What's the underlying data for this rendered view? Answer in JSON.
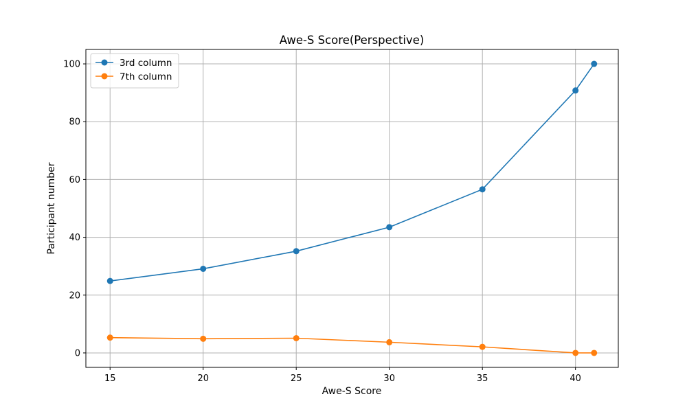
{
  "chart_data": {
    "type": "line",
    "title": "Awe-S Score(Perspective)",
    "xlabel": "Awe-S Score",
    "ylabel": "Participant number",
    "xlim": [
      13.7,
      42.3
    ],
    "ylim": [
      -5,
      105
    ],
    "x_ticks": [
      15,
      20,
      25,
      30,
      35,
      40
    ],
    "y_ticks": [
      0,
      20,
      40,
      60,
      80,
      100
    ],
    "grid": true,
    "legend_position": "top-left",
    "series": [
      {
        "name": "3rd column",
        "color": "#1f77b4",
        "x": [
          15,
          20,
          25,
          30,
          35,
          40,
          41
        ],
        "y": [
          24.9,
          29.1,
          35.2,
          43.5,
          56.6,
          90.8,
          100.0
        ]
      },
      {
        "name": "7th column",
        "color": "#ff7f0e",
        "x": [
          15,
          20,
          25,
          30,
          35,
          40,
          41
        ],
        "y": [
          5.3,
          4.9,
          5.1,
          3.7,
          2.1,
          0.0,
          0.0
        ]
      }
    ]
  }
}
